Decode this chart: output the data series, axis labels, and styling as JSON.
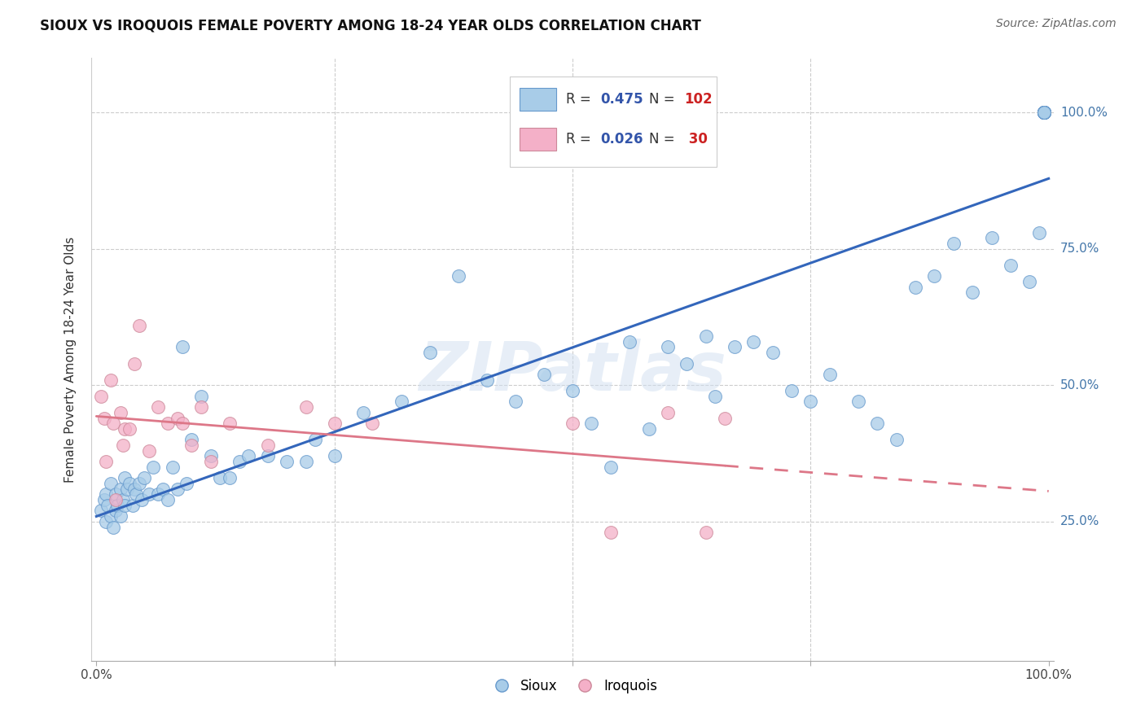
{
  "title": "SIOUX VS IROQUOIS FEMALE POVERTY AMONG 18-24 YEAR OLDS CORRELATION CHART",
  "source": "Source: ZipAtlas.com",
  "ylabel": "Female Poverty Among 18-24 Year Olds",
  "ytick_labels": [
    "25.0%",
    "50.0%",
    "75.0%",
    "100.0%"
  ],
  "ytick_vals": [
    0.25,
    0.5,
    0.75,
    1.0
  ],
  "sioux_color": "#a8cce8",
  "iroquois_color": "#f4b0c8",
  "sioux_edge_color": "#6699cc",
  "iroquois_edge_color": "#cc8899",
  "sioux_line_color": "#3366bb",
  "iroquois_line_color": "#dd7788",
  "watermark": "ZIPatlas",
  "legend_R1": "0.475",
  "legend_N1": "102",
  "legend_R2": "0.026",
  "legend_N2": "30",
  "sioux_x": [
    0.005,
    0.008,
    0.01,
    0.01,
    0.012,
    0.015,
    0.015,
    0.018,
    0.02,
    0.02,
    0.022,
    0.025,
    0.025,
    0.028,
    0.03,
    0.03,
    0.032,
    0.035,
    0.038,
    0.04,
    0.042,
    0.045,
    0.048,
    0.05,
    0.055,
    0.06,
    0.065,
    0.07,
    0.075,
    0.08,
    0.085,
    0.09,
    0.095,
    0.1,
    0.11,
    0.12,
    0.13,
    0.14,
    0.15,
    0.16,
    0.18,
    0.2,
    0.22,
    0.23,
    0.25,
    0.28,
    0.32,
    0.35,
    0.38,
    0.41,
    0.44,
    0.47,
    0.5,
    0.52,
    0.54,
    0.56,
    0.58,
    0.6,
    0.62,
    0.64,
    0.65,
    0.67,
    0.69,
    0.71,
    0.73,
    0.75,
    0.77,
    0.8,
    0.82,
    0.84,
    0.86,
    0.88,
    0.9,
    0.92,
    0.94,
    0.96,
    0.98,
    0.99,
    0.995,
    0.995,
    0.995,
    0.995,
    0.995,
    0.995,
    0.995,
    0.995,
    0.995,
    0.995,
    0.995,
    0.995,
    0.995,
    0.995,
    0.995,
    0.995,
    0.995,
    0.995,
    0.995,
    0.995,
    0.995,
    0.995,
    0.995,
    0.995
  ],
  "sioux_y": [
    0.27,
    0.29,
    0.25,
    0.3,
    0.28,
    0.32,
    0.26,
    0.24,
    0.3,
    0.27,
    0.28,
    0.31,
    0.26,
    0.29,
    0.33,
    0.28,
    0.31,
    0.32,
    0.28,
    0.31,
    0.3,
    0.32,
    0.29,
    0.33,
    0.3,
    0.35,
    0.3,
    0.31,
    0.29,
    0.35,
    0.31,
    0.57,
    0.32,
    0.4,
    0.48,
    0.37,
    0.33,
    0.33,
    0.36,
    0.37,
    0.37,
    0.36,
    0.36,
    0.4,
    0.37,
    0.45,
    0.47,
    0.56,
    0.7,
    0.51,
    0.47,
    0.52,
    0.49,
    0.43,
    0.35,
    0.58,
    0.42,
    0.57,
    0.54,
    0.59,
    0.48,
    0.57,
    0.58,
    0.56,
    0.49,
    0.47,
    0.52,
    0.47,
    0.43,
    0.4,
    0.68,
    0.7,
    0.76,
    0.67,
    0.77,
    0.72,
    0.69,
    0.78,
    1.0,
    1.0,
    1.0,
    1.0,
    1.0,
    1.0,
    1.0,
    1.0,
    1.0,
    1.0,
    1.0,
    1.0,
    1.0,
    1.0,
    1.0,
    1.0,
    1.0,
    1.0,
    1.0,
    1.0,
    1.0,
    1.0,
    1.0,
    1.0
  ],
  "iroquois_x": [
    0.005,
    0.008,
    0.01,
    0.015,
    0.018,
    0.02,
    0.025,
    0.028,
    0.03,
    0.035,
    0.04,
    0.045,
    0.055,
    0.065,
    0.075,
    0.085,
    0.09,
    0.1,
    0.11,
    0.12,
    0.14,
    0.18,
    0.22,
    0.25,
    0.29,
    0.5,
    0.54,
    0.6,
    0.64,
    0.66
  ],
  "iroquois_y": [
    0.48,
    0.44,
    0.36,
    0.51,
    0.43,
    0.29,
    0.45,
    0.39,
    0.42,
    0.42,
    0.54,
    0.61,
    0.38,
    0.46,
    0.43,
    0.44,
    0.43,
    0.39,
    0.46,
    0.36,
    0.43,
    0.39,
    0.46,
    0.43,
    0.43,
    0.43,
    0.23,
    0.45,
    0.23,
    0.44
  ]
}
